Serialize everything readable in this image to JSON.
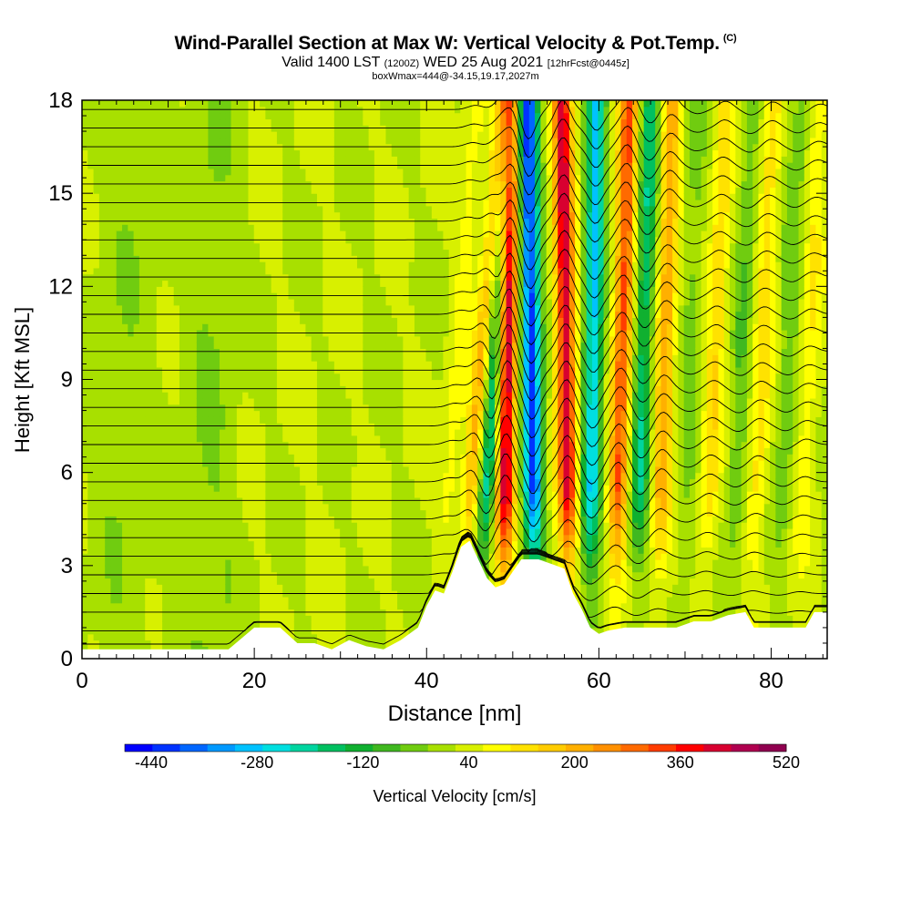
{
  "title": {
    "main": "Wind-Parallel Section at Max W: Vertical Velocity & Pot.Temp.",
    "copyright": "(C)",
    "valid_prefix": "Valid 1400 LST",
    "valid_utc": "(1200Z)",
    "valid_date": "WED 25 Aug 2021",
    "forecast": "[12hrFcst@0445z]",
    "box_info": "boxWmax=444@-34.15,19.17,2027m"
  },
  "chart_data": {
    "type": "heatmap",
    "xlabel": "Distance [nm]",
    "ylabel": "Height [Kft MSL]",
    "xlim": [
      0,
      86.5
    ],
    "ylim": [
      0,
      18
    ],
    "xticks": [
      0,
      20,
      40,
      60,
      80
    ],
    "yticks": [
      0,
      3,
      6,
      9,
      12,
      15,
      18
    ],
    "colorbar": {
      "label": "Vertical Velocity [cm/s]",
      "range": [
        -480,
        520
      ],
      "tick_labels": [
        "-440",
        "-280",
        "-120",
        "40",
        "200",
        "360",
        "520"
      ],
      "tick_values": [
        -440,
        -280,
        -120,
        40,
        200,
        360,
        520
      ],
      "colors": [
        "#0000ff",
        "#0033ff",
        "#0066ff",
        "#0099ff",
        "#00c2ff",
        "#00dfe0",
        "#00d5a0",
        "#00c060",
        "#10b030",
        "#40b820",
        "#70cc10",
        "#a8e000",
        "#d8f000",
        "#ffff00",
        "#ffe200",
        "#ffcc00",
        "#ffb000",
        "#ff9000",
        "#ff6a00",
        "#ff3c00",
        "#ff0000",
        "#d80030",
        "#b00050",
        "#900050"
      ]
    },
    "terrain": [
      [
        0,
        0.3
      ],
      [
        5,
        0.3
      ],
      [
        11,
        0.3
      ],
      [
        17,
        0.3
      ],
      [
        20,
        1
      ],
      [
        23,
        1
      ],
      [
        25,
        0.5
      ],
      [
        27,
        0.5
      ],
      [
        29,
        0.3
      ],
      [
        31,
        0.6
      ],
      [
        33,
        0.4
      ],
      [
        35,
        0.3
      ],
      [
        37,
        0.6
      ],
      [
        39,
        1
      ],
      [
        40,
        1.7
      ],
      [
        41,
        2.2
      ],
      [
        42,
        2.1
      ],
      [
        43,
        2.8
      ],
      [
        44,
        3.6
      ],
      [
        45,
        3.8
      ],
      [
        46,
        3.2
      ],
      [
        47,
        2.6
      ],
      [
        48,
        2.3
      ],
      [
        49,
        2.4
      ],
      [
        50,
        2.8
      ],
      [
        51,
        3.2
      ],
      [
        53,
        3.2
      ],
      [
        55,
        3
      ],
      [
        56,
        2.9
      ],
      [
        57,
        2.1
      ],
      [
        58,
        1.6
      ],
      [
        59,
        1
      ],
      [
        60,
        0.8
      ],
      [
        61,
        0.9
      ],
      [
        63,
        1
      ],
      [
        66,
        1
      ],
      [
        69,
        1
      ],
      [
        71,
        1.2
      ],
      [
        73,
        1.2
      ],
      [
        75,
        1.4
      ],
      [
        77,
        1.5
      ],
      [
        78,
        1
      ],
      [
        80,
        1
      ],
      [
        82,
        1
      ],
      [
        84,
        1
      ],
      [
        85,
        1.5
      ],
      [
        86.5,
        1.5
      ]
    ],
    "updraft_bands": [
      {
        "x_at_3kft": 42,
        "slope_nm_per_kft": 0.25,
        "w_max": 60
      },
      {
        "x_at_3kft": 44.5,
        "slope_nm_per_kft": 0.3,
        "w_max": 200
      },
      {
        "x_at_3kft": 46.5,
        "slope_nm_per_kft": 0.2,
        "w_max": -260
      },
      {
        "x_at_3kft": 49,
        "slope_nm_per_kft": 0.05,
        "w_max": 440
      },
      {
        "x_at_3kft": 52.5,
        "slope_nm_per_kft": -0.05,
        "w_max": -440
      },
      {
        "x_at_3kft": 56.5,
        "slope_nm_per_kft": -0.05,
        "w_max": 400
      },
      {
        "x_at_3kft": 59,
        "slope_nm_per_kft": 0.05,
        "w_max": -300
      },
      {
        "x_at_3kft": 62,
        "slope_nm_per_kft": 0.1,
        "w_max": 300
      },
      {
        "x_at_3kft": 64.5,
        "slope_nm_per_kft": 0.1,
        "w_max": -200
      },
      {
        "x_at_3kft": 67,
        "slope_nm_per_kft": 0.1,
        "w_max": 200
      },
      {
        "x_at_3kft": 70,
        "slope_nm_per_kft": 0.1,
        "w_max": -60
      },
      {
        "x_at_3kft": 72.5,
        "slope_nm_per_kft": 0.15,
        "w_max": 120
      },
      {
        "x_at_3kft": 75.5,
        "slope_nm_per_kft": 0.15,
        "w_max": -80
      },
      {
        "x_at_3kft": 78,
        "slope_nm_per_kft": 0.15,
        "w_max": 110
      },
      {
        "x_at_3kft": 81,
        "slope_nm_per_kft": 0.15,
        "w_max": -70
      },
      {
        "x_at_3kft": 83.5,
        "slope_nm_per_kft": 0.15,
        "w_max": 80
      }
    ],
    "isentrope_heights_kft": [
      0.4,
      0.9,
      1.5,
      2.1,
      2.7,
      3.3,
      3.9,
      4.5,
      5.1,
      5.7,
      6.3,
      6.9,
      7.5,
      8.1,
      8.7,
      9.3,
      9.9,
      10.5,
      11.1,
      11.7,
      12.3,
      12.9,
      13.5,
      14.1,
      14.7,
      15.3,
      15.9,
      16.5,
      17.1,
      17.7
    ]
  }
}
